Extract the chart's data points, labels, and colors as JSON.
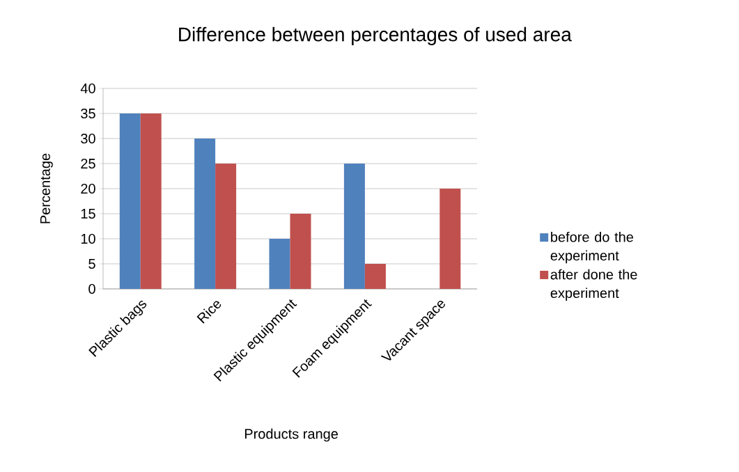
{
  "chart_data": {
    "type": "bar",
    "title": "Difference between percentages of used area",
    "xlabel": "Products range",
    "ylabel": "Percentage",
    "categories": [
      "Plastic bags",
      "Rice",
      "Plastic equipment",
      "Foam equipment",
      "Vacant space"
    ],
    "series": [
      {
        "name": "before do the experiment",
        "color": "#4f81bd",
        "values": [
          35,
          30,
          10,
          25,
          0
        ]
      },
      {
        "name": "after done the experiment",
        "color": "#c0504d",
        "values": [
          35,
          25,
          15,
          5,
          20
        ]
      }
    ],
    "ylim": [
      0,
      40
    ],
    "yticks": [
      0,
      5,
      10,
      15,
      20,
      25,
      30,
      35,
      40
    ],
    "grid": "y",
    "legend": "right"
  }
}
